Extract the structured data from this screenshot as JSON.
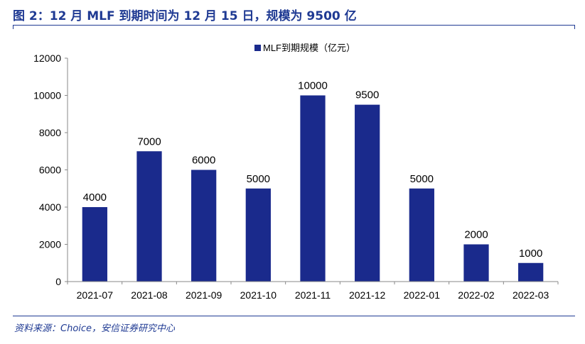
{
  "title": "图 2：12 月 MLF 到期时间为 12 月 15 日，规模为 9500 亿",
  "source": "资料来源：Choice，安信证券研究中心",
  "colors": {
    "bar": "#1a2a8c",
    "accent": "#1f3a93"
  },
  "chart_data": {
    "type": "bar",
    "categories": [
      "2021-07",
      "2021-08",
      "2021-09",
      "2021-10",
      "2021-11",
      "2021-12",
      "2022-01",
      "2022-02",
      "2022-03"
    ],
    "series": [
      {
        "name": "MLF到期规模（亿元）",
        "values": [
          4000,
          7000,
          6000,
          5000,
          10000,
          9500,
          5000,
          2000,
          1000
        ]
      }
    ],
    "ylim": [
      0,
      12000
    ],
    "yticks": [
      0,
      2000,
      4000,
      6000,
      8000,
      10000,
      12000
    ],
    "data_labels": true,
    "legend_position": "top",
    "grid": false
  }
}
